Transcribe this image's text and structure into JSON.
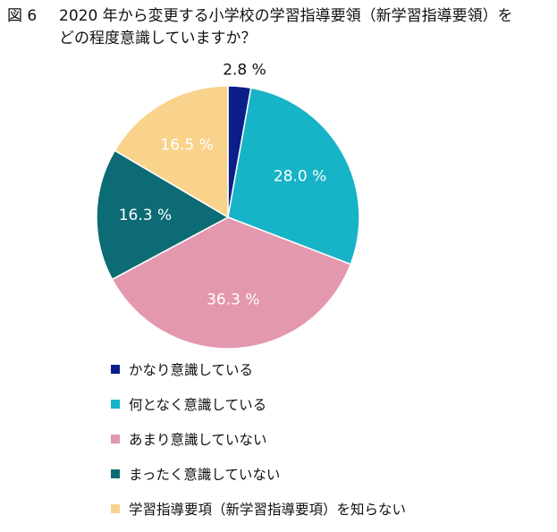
{
  "title": {
    "fig_label": "図 6",
    "line1": "2020 年から変更する小学校の学習指導要領（新学習指導要領）を",
    "line2": "どの程度意識していますか？"
  },
  "chart_data": {
    "type": "pie",
    "start_angle_deg": 0,
    "direction": "clockwise",
    "slices": [
      {
        "label": "かなり意識している",
        "value": 2.8,
        "value_label": "2.8 %",
        "color": "#0b1f8a",
        "label_color": "#111111",
        "label_position": "outside"
      },
      {
        "label": "何となく意識している",
        "value": 28.0,
        "value_label": "28.0 %",
        "color": "#17b3c7",
        "label_color": "#ffffff",
        "label_position": "inside"
      },
      {
        "label": "あまり意識していない",
        "value": 36.3,
        "value_label": "36.3 %",
        "color": "#e398ad",
        "label_color": "#ffffff",
        "label_position": "inside"
      },
      {
        "label": "まったく意識していない",
        "value": 16.3,
        "value_label": "16.3 %",
        "color": "#0c6b74",
        "label_color": "#ffffff",
        "label_position": "inside"
      },
      {
        "label": "学習指導要項（新学習指導要項）を知らない",
        "value": 16.5,
        "value_label": "16.5 %",
        "color": "#f9d38b",
        "label_color": "#ffffff",
        "label_position": "inside"
      }
    ]
  }
}
